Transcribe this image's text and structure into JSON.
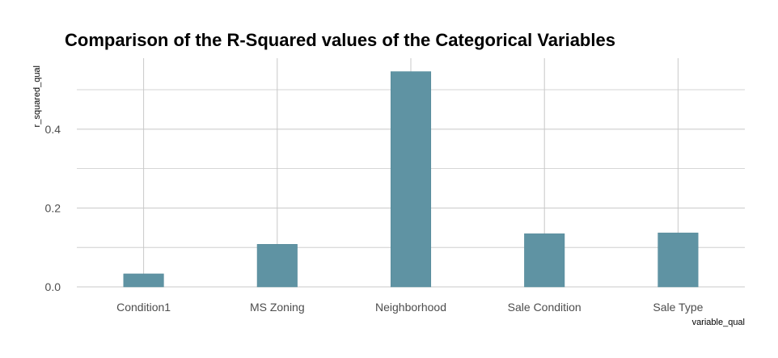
{
  "chart_data": {
    "type": "bar",
    "title": "Comparison of the R-Squared values of the Categorical Variables",
    "xlabel": "variable_qual",
    "ylabel": "r_squared_qual",
    "categories": [
      "Condition1",
      "MS Zoning",
      "Neighborhood",
      "Sale Condition",
      "Sale Type"
    ],
    "values": [
      0.033,
      0.108,
      0.546,
      0.135,
      0.137
    ],
    "ylim": [
      0,
      0.546
    ],
    "yticks": [
      0.0,
      0.2,
      0.4
    ],
    "ytick_labels": [
      "0.0",
      "0.2",
      "0.4"
    ],
    "grid": true,
    "bar_color": "#5f93a3",
    "bar_stroke": "#4f8596",
    "grid_color": "#c8c8c8"
  }
}
